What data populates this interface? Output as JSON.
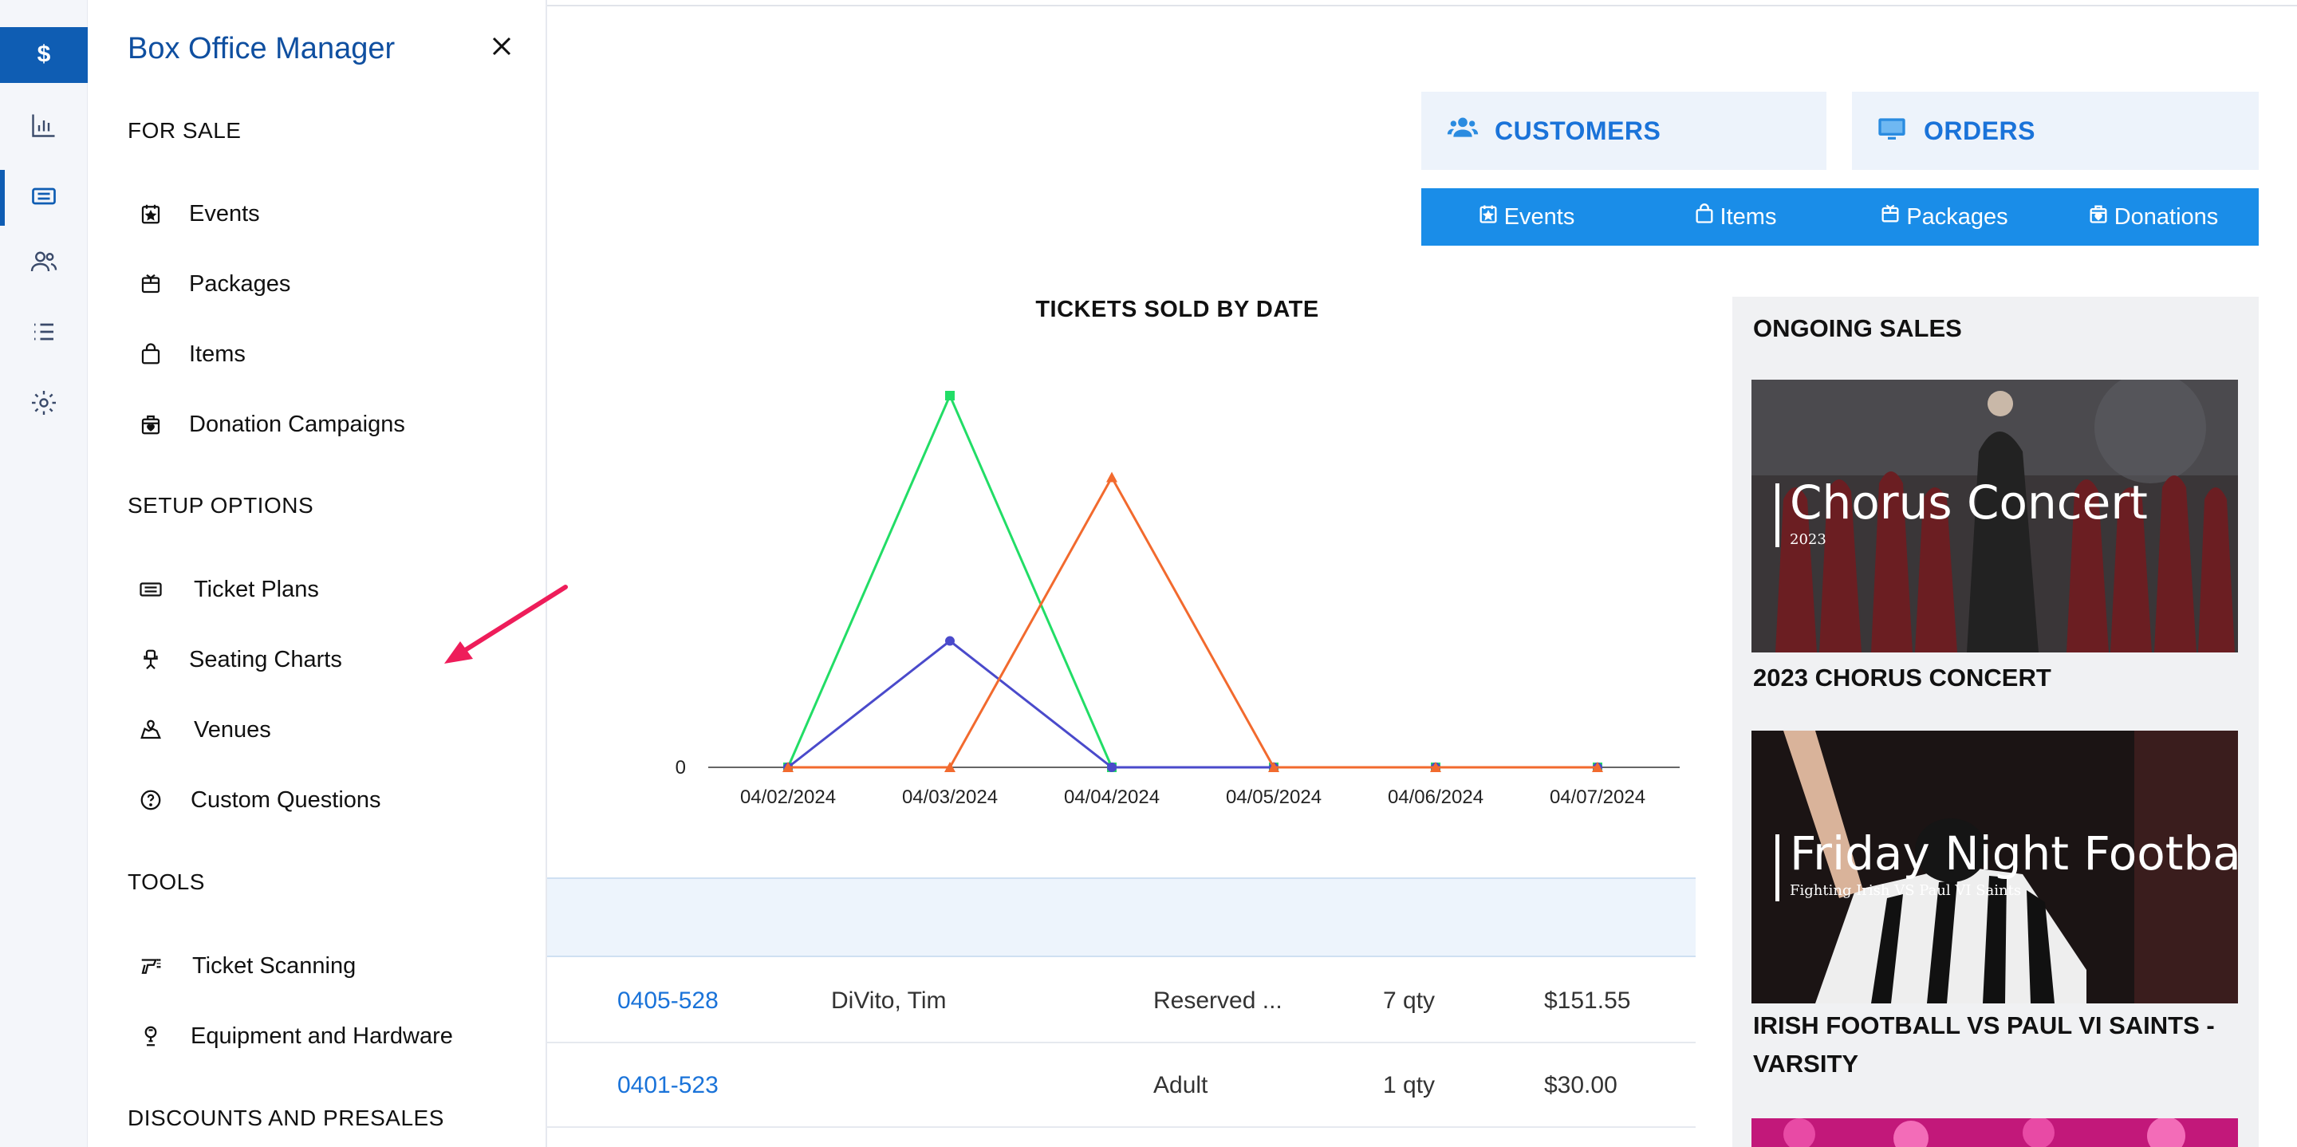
{
  "drawer": {
    "title": "Box Office Manager",
    "sections": [
      {
        "label": "FOR SALE",
        "items": [
          {
            "label": "Events",
            "icon": "calendar-star-icon"
          },
          {
            "label": "Packages",
            "icon": "package-icon"
          },
          {
            "label": "Items",
            "icon": "shopping-bag-icon"
          },
          {
            "label": "Donation Campaigns",
            "icon": "donation-box-icon"
          }
        ]
      },
      {
        "label": "SETUP OPTIONS",
        "items": [
          {
            "label": "Ticket Plans",
            "icon": "ticket-icon"
          },
          {
            "label": "Seating Charts",
            "icon": "chair-icon"
          },
          {
            "label": "Venues",
            "icon": "map-pin-icon"
          },
          {
            "label": "Custom Questions",
            "icon": "question-circle-icon"
          }
        ]
      },
      {
        "label": "TOOLS",
        "items": [
          {
            "label": "Ticket Scanning",
            "icon": "scanner-icon"
          },
          {
            "label": "Equipment and Hardware",
            "icon": "hardware-icon"
          }
        ]
      },
      {
        "label": "DISCOUNTS AND PRESALES",
        "items": []
      }
    ]
  },
  "iconbar": [
    "dollar-icon",
    "bar-chart-icon",
    "ticket-icon",
    "users-icon",
    "list-icon",
    "gear-icon"
  ],
  "header": {
    "customers_label": "CUSTOMERS",
    "orders_label": "ORDERS",
    "tabs": [
      "Events",
      "Items",
      "Packages",
      "Donations"
    ]
  },
  "chart_data": {
    "type": "line",
    "title": "TICKETS SOLD BY DATE",
    "x": [
      "04/02/2024",
      "04/03/2024",
      "04/04/2024",
      "04/05/2024",
      "04/06/2024",
      "04/07/2024"
    ],
    "y_tick_labels": [
      "0"
    ],
    "series": [
      {
        "color": "#22dd66",
        "marker": "square",
        "values": [
          0,
          10,
          0,
          0,
          0,
          0
        ]
      },
      {
        "color": "#4a4acb",
        "marker": "circle",
        "values": [
          0,
          3.4,
          0,
          0,
          0,
          0
        ]
      },
      {
        "color": "#f26a2e",
        "marker": "triangle",
        "values": [
          0,
          0,
          7.8,
          0,
          0,
          0
        ]
      }
    ],
    "ylim": [
      0,
      10
    ],
    "legend": "none"
  },
  "orders": [
    {
      "id": "0405-528",
      "customer": "DiVito, Tim",
      "item": "Reserved ...",
      "qty": "7 qty",
      "total": "$151.55"
    },
    {
      "id": "0401-523",
      "customer": "",
      "item": "Adult",
      "qty": "1 qty",
      "total": "$30.00"
    }
  ],
  "ongoing": {
    "title": "ONGOING SALES",
    "cards": [
      {
        "overlay_title": "Chorus Concert",
        "overlay_sub": "2023",
        "name": "2023 CHORUS CONCERT"
      },
      {
        "overlay_title": "Friday Night Football",
        "overlay_sub": "Fighting Irish VS Paul VI Saints",
        "name": "IRISH FOOTBALL VS PAUL VI SAINTS - VARSITY"
      }
    ]
  }
}
